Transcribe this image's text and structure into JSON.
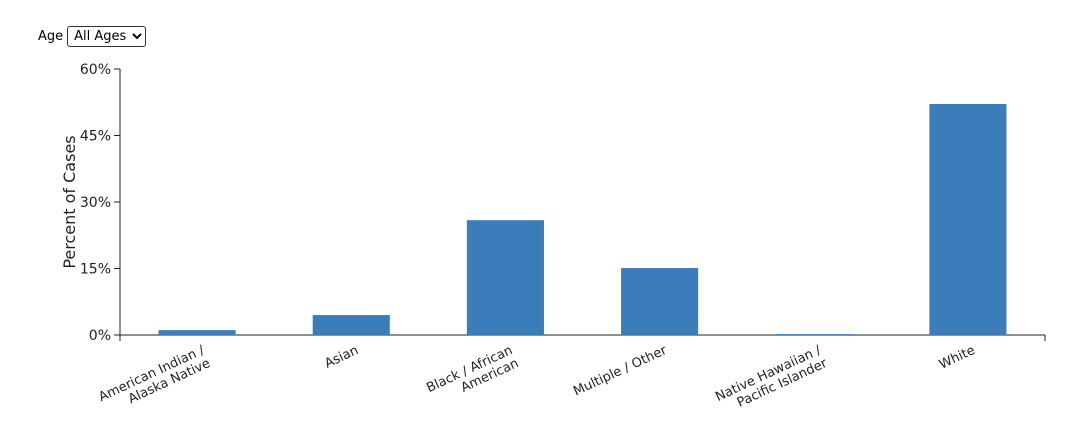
{
  "controls": {
    "label": "Age",
    "options": [
      "All Ages"
    ]
  },
  "chart_data": {
    "type": "bar",
    "y_label": "Percent of Cases",
    "categories": [
      "American Indian /\nAlaska Native",
      "Asian",
      "Black / African\nAmerican",
      "Multiple / Other",
      "Native Hawaiian /\nPacific Islander",
      "White"
    ],
    "values": [
      1.1,
      4.5,
      25.9,
      15.1,
      0.2,
      52.1
    ],
    "color": "#3a7dba",
    "ylim": [
      0,
      60
    ],
    "yticks": [
      {
        "value": 0,
        "label": "0%"
      },
      {
        "value": 15,
        "label": "15%"
      },
      {
        "value": 30,
        "label": "30%"
      },
      {
        "value": 45,
        "label": "45%"
      },
      {
        "value": 60,
        "label": "60%"
      }
    ]
  }
}
